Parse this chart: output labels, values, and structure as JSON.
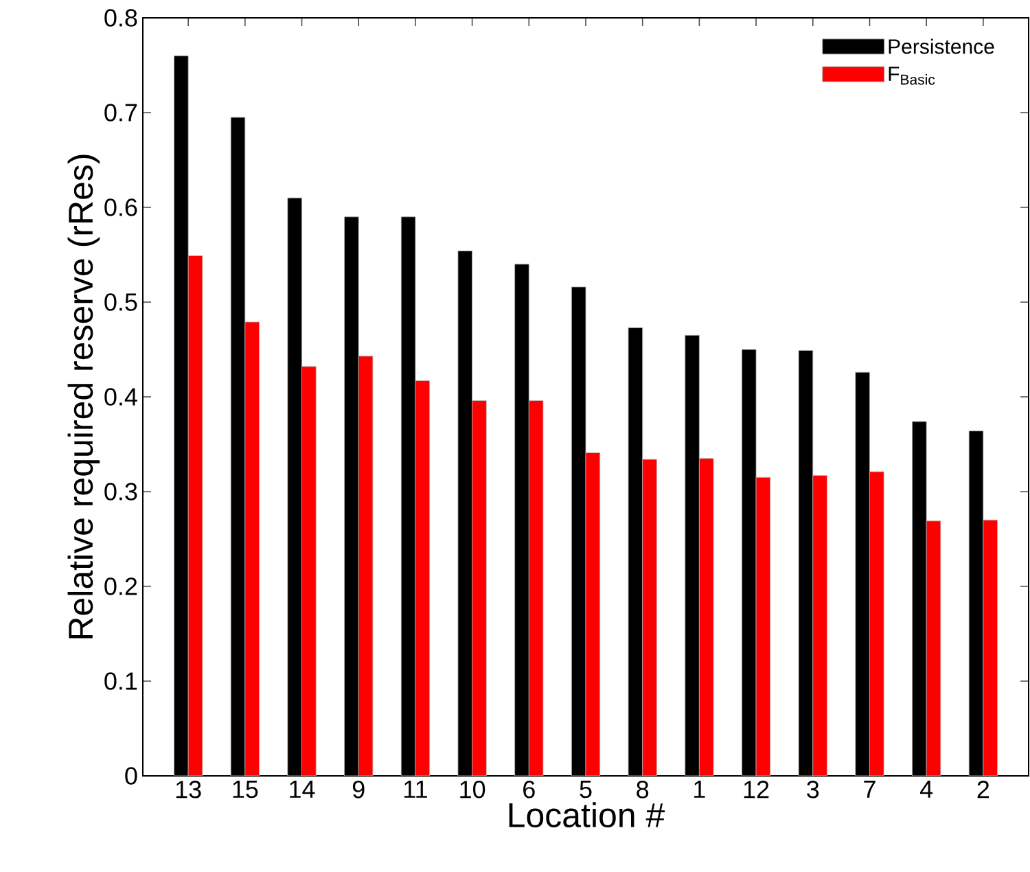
{
  "chart_data": {
    "type": "bar",
    "xlabel": "Location #",
    "ylabel": "Relative required reserve (rRes)",
    "categories": [
      "13",
      "15",
      "14",
      "9",
      "11",
      "10",
      "6",
      "5",
      "8",
      "1",
      "12",
      "3",
      "7",
      "4",
      "2"
    ],
    "series": [
      {
        "name": "Persistence",
        "color": "#000000",
        "values": [
          0.76,
          0.695,
          0.61,
          0.59,
          0.59,
          0.554,
          0.54,
          0.516,
          0.473,
          0.465,
          0.45,
          0.449,
          0.426,
          0.374,
          0.364
        ]
      },
      {
        "name": "F$_{Basic}$",
        "color": "#ff0000",
        "values": [
          0.549,
          0.479,
          0.432,
          0.443,
          0.417,
          0.396,
          0.396,
          0.341,
          0.334,
          0.335,
          0.315,
          0.317,
          0.321,
          0.269,
          0.27
        ]
      }
    ],
    "ylim": [
      0,
      0.8
    ],
    "yticks": [
      0,
      0.1,
      0.2,
      0.3,
      0.4,
      0.5,
      0.6,
      0.7,
      0.8
    ],
    "grid": false,
    "legend": "top right"
  }
}
